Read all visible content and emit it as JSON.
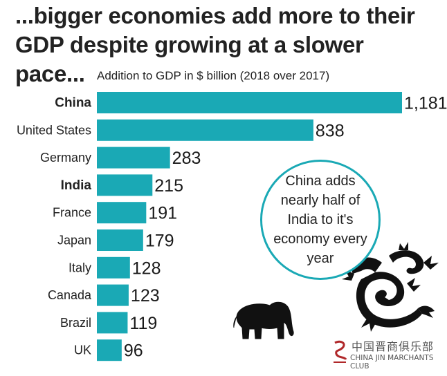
{
  "headline": "...bigger economies add more to their GDP despite growing at a slower pace...",
  "chart_data": {
    "type": "bar",
    "orientation": "horizontal",
    "title": "Addition to GDP in $ billion (2018 over 2017)",
    "categories": [
      "China",
      "United States",
      "Germany",
      "India",
      "France",
      "Japan",
      "Italy",
      "Canada",
      "Brazil",
      "UK"
    ],
    "values": [
      1181,
      838,
      283,
      215,
      191,
      179,
      128,
      123,
      119,
      96
    ],
    "value_labels": [
      "1,181",
      "838",
      "283",
      "215",
      "191",
      "179",
      "128",
      "123",
      "119",
      "96"
    ],
    "highlighted": [
      "China",
      "India"
    ],
    "bar_color": "#1aa9b5",
    "xlim": [
      0,
      1181
    ],
    "grid": false,
    "legend": "none"
  },
  "callout": {
    "text": "China adds nearly half of India to it's economy every year"
  },
  "watermark": {
    "chinese": "中国晋商俱乐部",
    "english": "CHINA JIN MARCHANTS CLUB"
  },
  "icons": [
    "elephant-icon",
    "dragon-icon"
  ]
}
